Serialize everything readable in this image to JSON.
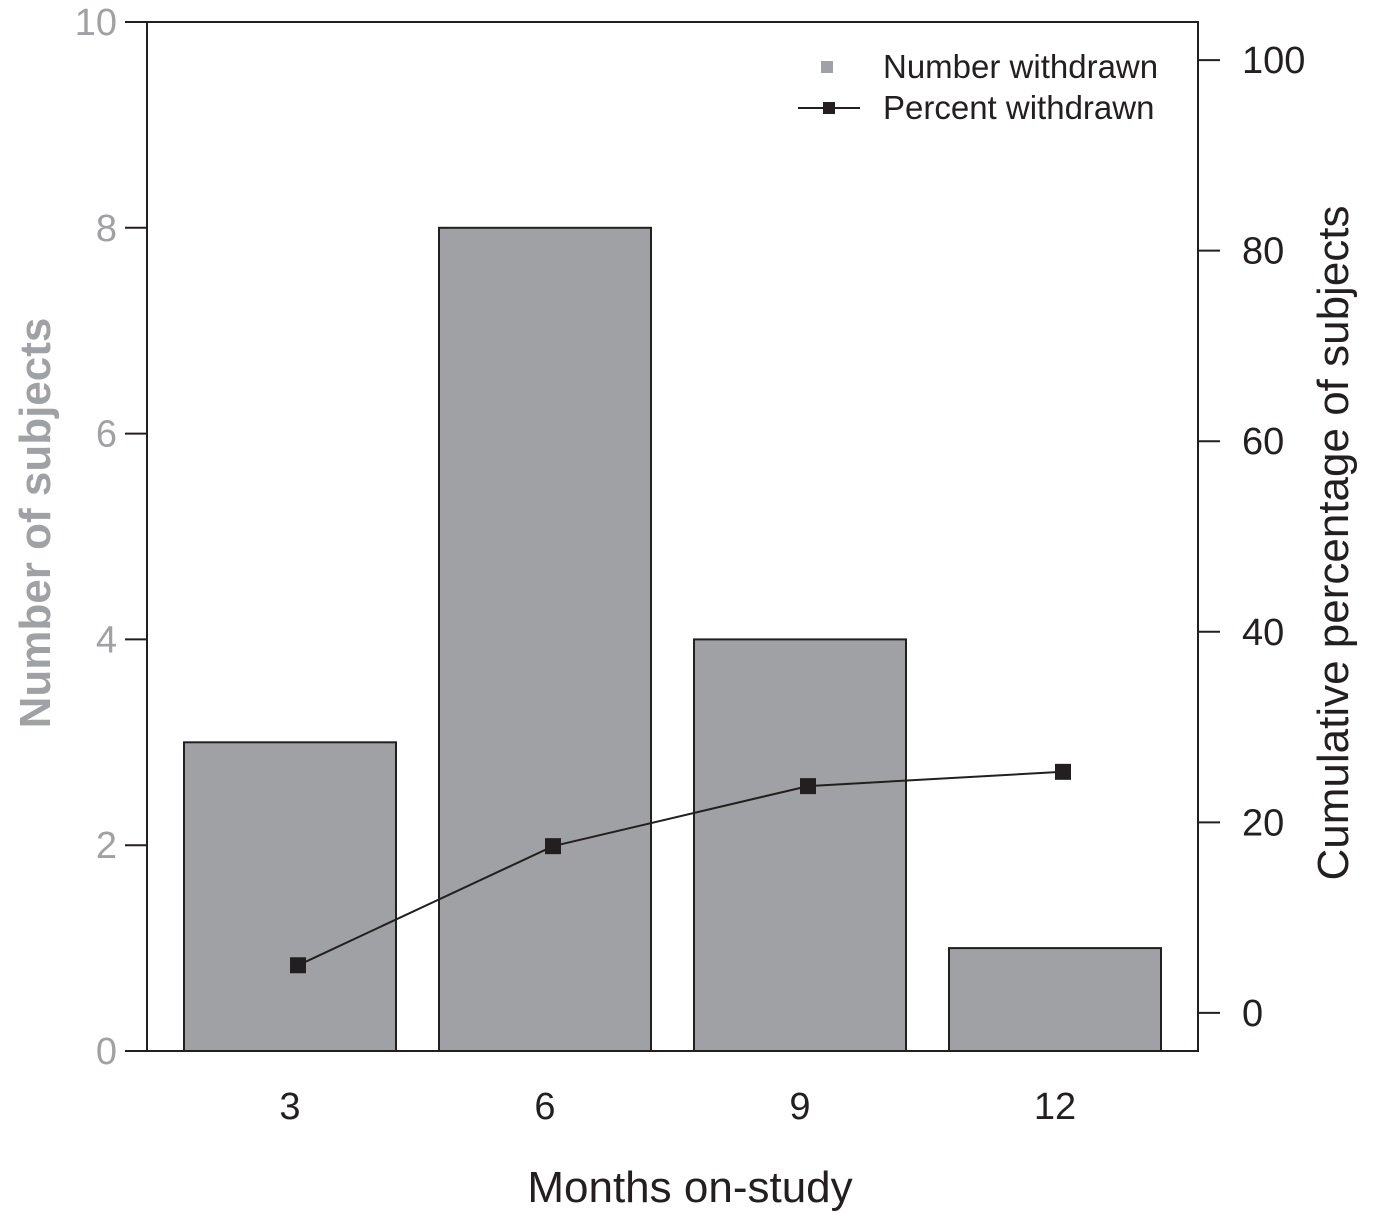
{
  "chart_data": {
    "type": "bar",
    "categories": [
      "3",
      "6",
      "9",
      "12"
    ],
    "xlabel": "Months on-study",
    "ylabel_left": "Number of subjects",
    "ylabel_right": "Cumulative percentage of subjects",
    "ylim_left": [
      0,
      10
    ],
    "ylim_right": [
      -4,
      104
    ],
    "yticks_left": [
      "0",
      "2",
      "4",
      "6",
      "8",
      "10"
    ],
    "yticks_right": [
      "0",
      "20",
      "40",
      "60",
      "80",
      "100"
    ],
    "series": [
      {
        "name": "Number withdrawn",
        "type": "bar",
        "axis": "left",
        "values": [
          3,
          8,
          4,
          1
        ]
      },
      {
        "name": "Percent withdrawn",
        "type": "line",
        "axis": "right",
        "values": [
          5,
          17.5,
          23.8,
          25.3
        ]
      }
    ],
    "legend_position": "top-right",
    "grid": false,
    "colors": {
      "bar": "#a0a1a5",
      "line": "#231f20",
      "left_axis": "#a0a1a5",
      "right_axis": "#231f20"
    }
  }
}
